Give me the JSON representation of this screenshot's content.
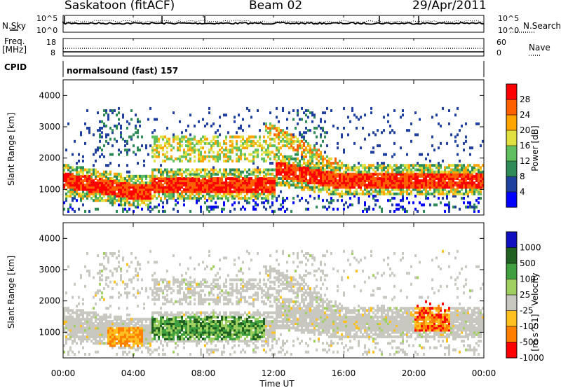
{
  "header": {
    "station": "Saskatoon (fitACF)",
    "beam": "Beam 02",
    "date": "29/Apr/2011"
  },
  "panels": {
    "nsky_label": "N.Sky",
    "nsearch_label": "N.Search",
    "nsky_ticks": [
      "10^5",
      "10^0"
    ],
    "nsearch_ticks": [
      "10^5",
      "10^0"
    ],
    "freq_label_1": "Freq.",
    "freq_label_2": "[MHz]",
    "freq_ticks": [
      "18",
      "8"
    ],
    "nave_label": "Nave",
    "nave_ticks": [
      "60",
      "0"
    ],
    "cpid_label": "CPID",
    "cpid_text": "normalsound (fast) 157"
  },
  "chart_data": [
    {
      "type": "heatmap",
      "title": "",
      "ylabel": "Slant Range [km]",
      "y_ticks": [
        "1000",
        "2000",
        "3000",
        "4000"
      ],
      "ylim": [
        180,
        4500
      ],
      "xlim": [
        "00:00",
        "24:00"
      ],
      "colorbar": {
        "label": "Power [dB]",
        "ticks": [
          "4",
          "8",
          "12",
          "16",
          "20",
          "24",
          "28"
        ],
        "range": [
          0,
          30
        ]
      },
      "features": [
        {
          "region": "main echo band, 00:00–23:59",
          "slant_range_km": [
            800,
            1700
          ],
          "power_db": [
            20,
            30
          ]
        },
        {
          "region": "upper band 05:00–12:30",
          "slant_range_km": [
            1800,
            2700
          ],
          "power_db": [
            10,
            22
          ]
        },
        {
          "region": "12:00–16:00 descending trace",
          "slant_range_km": [
            1300,
            2900
          ],
          "power_db": [
            12,
            24
          ]
        }
      ]
    },
    {
      "type": "heatmap",
      "title": "",
      "ylabel": "Slant Range [km]",
      "xlabel": "Time UT",
      "x_ticks": [
        "00:00",
        "04:00",
        "08:00",
        "12:00",
        "16:00",
        "20:00",
        "00:00"
      ],
      "y_ticks": [
        "1000",
        "2000",
        "3000",
        "4000"
      ],
      "ylim": [
        180,
        4500
      ],
      "colorbar": {
        "label": "Velocity",
        "unit": "[m s^-1]",
        "ticks": [
          "1000",
          "500",
          "100",
          "25",
          "-25",
          "-100",
          "-500",
          "-1000"
        ]
      },
      "features": [
        {
          "region": "02:30–04:30",
          "slant_range_km": [
            500,
            1100
          ],
          "velocity": "-100 to -500 (orange)"
        },
        {
          "region": "05:00–11:30",
          "slant_range_km": [
            800,
            1700
          ],
          "velocity": "25 to 500 (green)"
        },
        {
          "region": "background",
          "velocity": "-25 to 25 (gray)"
        },
        {
          "region": "20:00–22:00",
          "slant_range_km": [
            1000,
            2000
          ],
          "velocity": "-100 to -1000 (orange/red)"
        }
      ]
    }
  ],
  "colors": {
    "power_scale": [
      "#0000ff",
      "#2040a0",
      "#2e8b57",
      "#60c060",
      "#e0e040",
      "#ffa500",
      "#ff6000",
      "#ff0000"
    ],
    "velocity_scale": [
      "#1010c0",
      "#206020",
      "#40a040",
      "#a0d060",
      "#c8c8c0",
      "#ffc020",
      "#ff8000",
      "#ff0000"
    ]
  }
}
